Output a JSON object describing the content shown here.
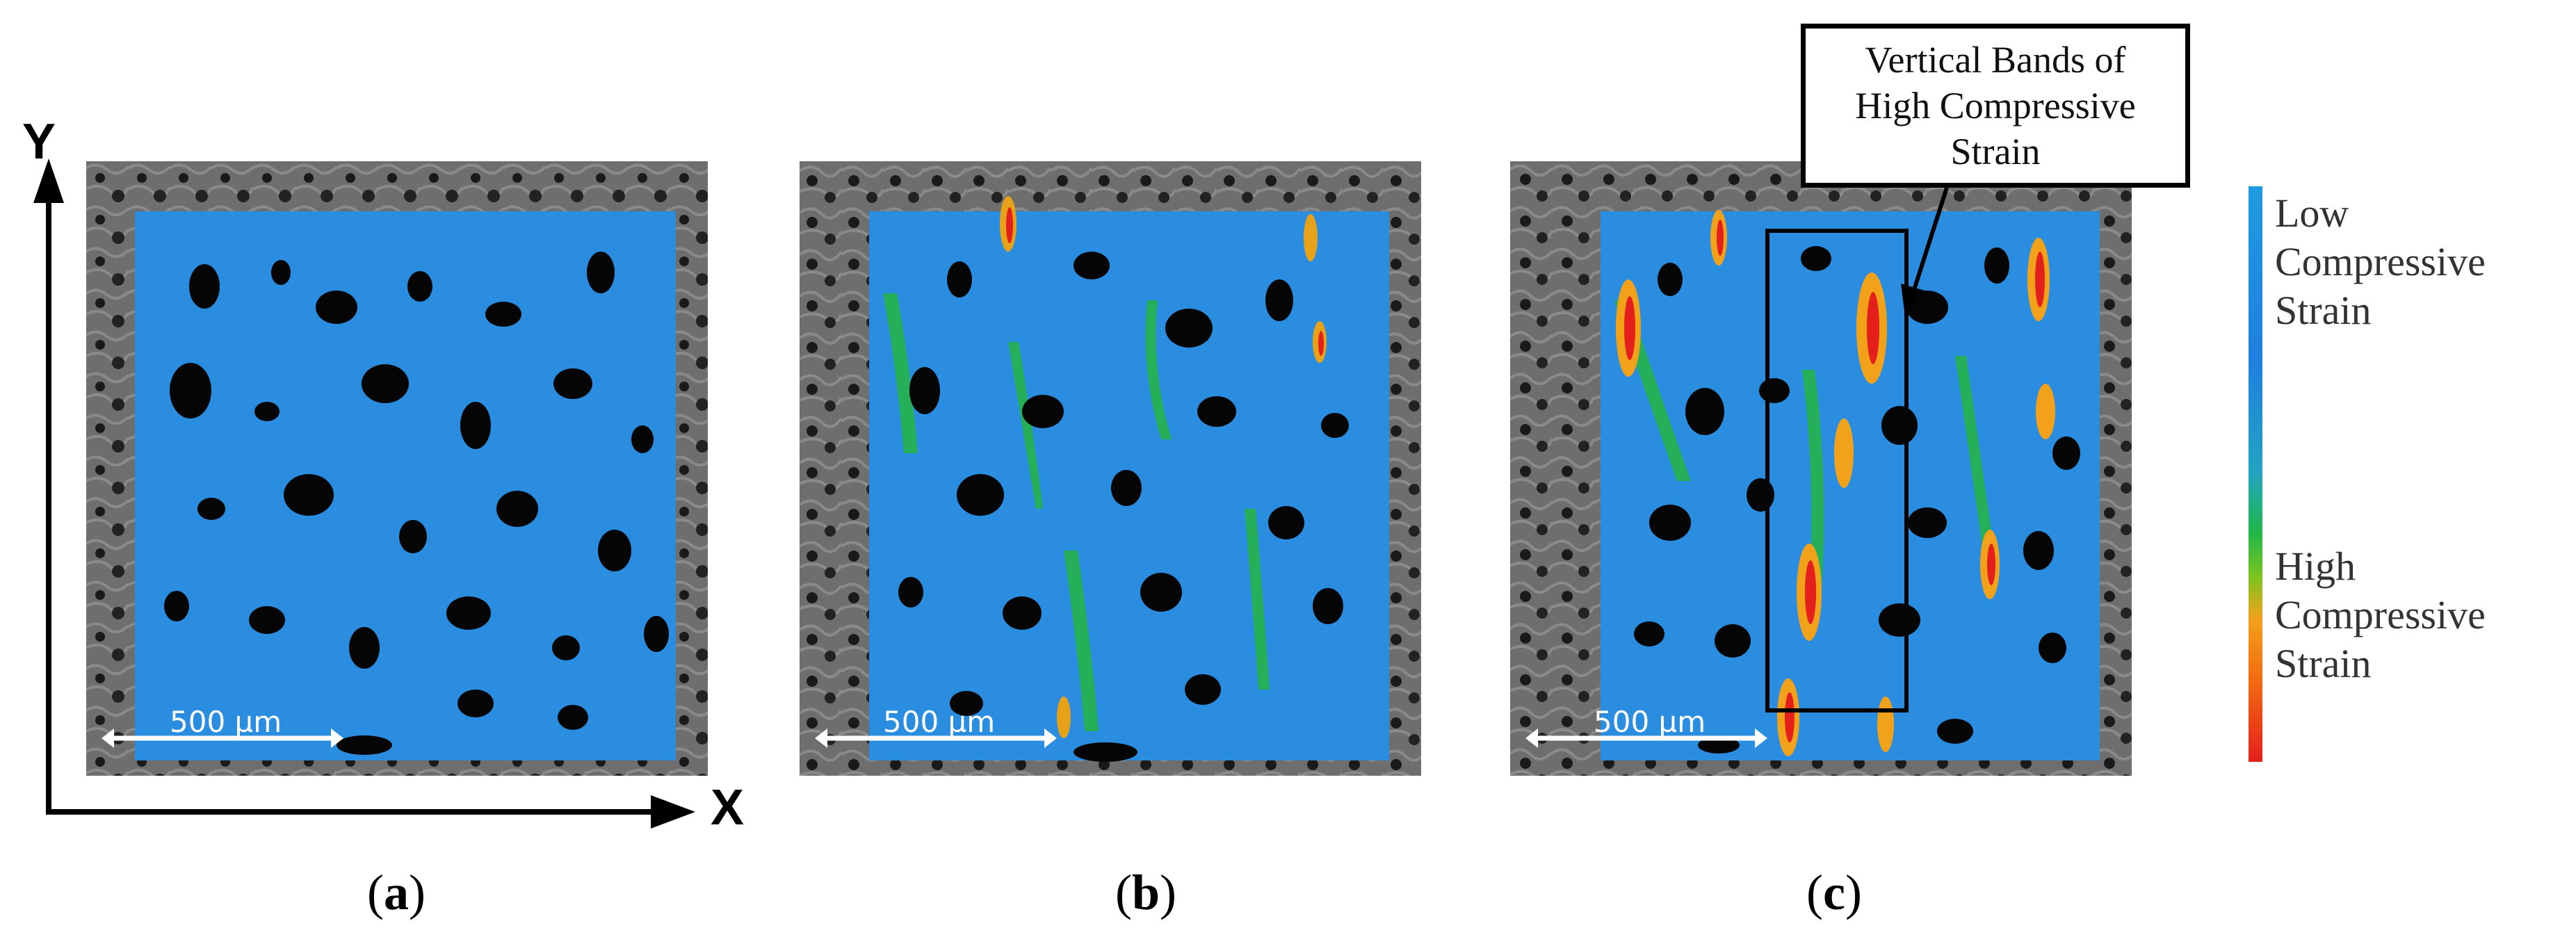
{
  "panels": [
    {
      "id": "a",
      "caption_letter": "a",
      "scale_label": "500 µm",
      "strain_level": "low"
    },
    {
      "id": "b",
      "caption_letter": "b",
      "scale_label": "500 µm",
      "strain_level": "moderate"
    },
    {
      "id": "c",
      "caption_letter": "c",
      "scale_label": "500 µm",
      "strain_level": "high"
    }
  ],
  "axes": {
    "y_label": "Y",
    "x_label": "X"
  },
  "callout": {
    "lines": [
      "Vertical Bands of",
      "High Compressive",
      "Strain"
    ]
  },
  "legend": {
    "low_lines": [
      "Low",
      "Compressive",
      "Strain"
    ],
    "high_lines": [
      "High",
      "Compressive",
      "Strain"
    ],
    "colors": {
      "low": "#1f7fe0",
      "mid": "#1fb84a",
      "high_orange": "#f2a21a",
      "high_red": "#e4201c"
    }
  },
  "colors": {
    "substrate_gray": "#6a6a6a",
    "field_blue": "#2a8de0",
    "pore_black": "#050505"
  }
}
